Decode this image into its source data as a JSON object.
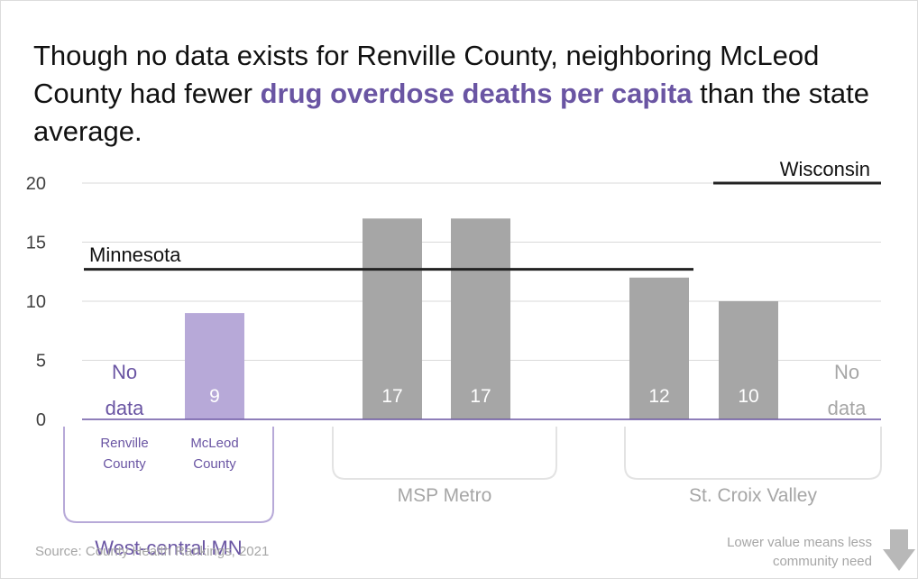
{
  "title": {
    "before": "Though no data exists for Renville County, neighboring McLeod County had fewer ",
    "highlight": "drug overdose deaths per capita",
    "after": " than the state average."
  },
  "colors": {
    "purple_dark": "#6a55a3",
    "purple_light": "#b7a9d8",
    "gray_bar": "#a6a6a6",
    "gray_text": "#a6a6a6",
    "grid": "#d9d9d9",
    "axis": "#6a55a3",
    "ref_line": "#222222"
  },
  "chart_data": {
    "type": "bar",
    "ylim": [
      0,
      20
    ],
    "yticks": [
      0,
      5,
      10,
      15,
      20
    ],
    "grid": true,
    "categories": [
      "Renville County",
      "McLeod County",
      "MSP Metro 1",
      "MSP Metro 2",
      "St. Croix Valley 1",
      "St. Croix Valley 2",
      "St. Croix Valley 3"
    ],
    "values": [
      null,
      9,
      17,
      17,
      12,
      10,
      null
    ],
    "bars": [
      {
        "value": null,
        "label": [
          "No",
          "data"
        ],
        "category_label": [
          "Renville",
          "County"
        ],
        "color": "purple_dark",
        "group": "West-central MN"
      },
      {
        "value": 9,
        "label": "9",
        "category_label": [
          "McLeod",
          "County"
        ],
        "color": "purple_light",
        "group": "West-central MN"
      },
      {
        "value": 17,
        "label": "17",
        "color": "gray_bar",
        "group": "MSP Metro"
      },
      {
        "value": 17,
        "label": "17",
        "color": "gray_bar",
        "group": "MSP Metro"
      },
      {
        "value": 12,
        "label": "12",
        "color": "gray_bar",
        "group": "St. Croix Valley"
      },
      {
        "value": 10,
        "label": "10",
        "color": "gray_bar",
        "group": "St. Croix Valley"
      },
      {
        "value": null,
        "label": [
          "No",
          "data"
        ],
        "color": "gray_text",
        "group": "St. Croix Valley"
      }
    ],
    "groups": [
      {
        "name": "West-central MN",
        "color": "purple_dark"
      },
      {
        "name": "MSP Metro",
        "color": "gray_text"
      },
      {
        "name": "St. Croix Valley",
        "color": "gray_text"
      }
    ],
    "reference_lines": [
      {
        "name": "Minnesota",
        "value": 12.7
      },
      {
        "name": "Wisconsin",
        "value": 20
      }
    ]
  },
  "source": "Source: County Health Rankings, 2021",
  "note": [
    "Lower value means less",
    "community need"
  ],
  "icons": {
    "note_icon": "down-arrow-icon"
  }
}
